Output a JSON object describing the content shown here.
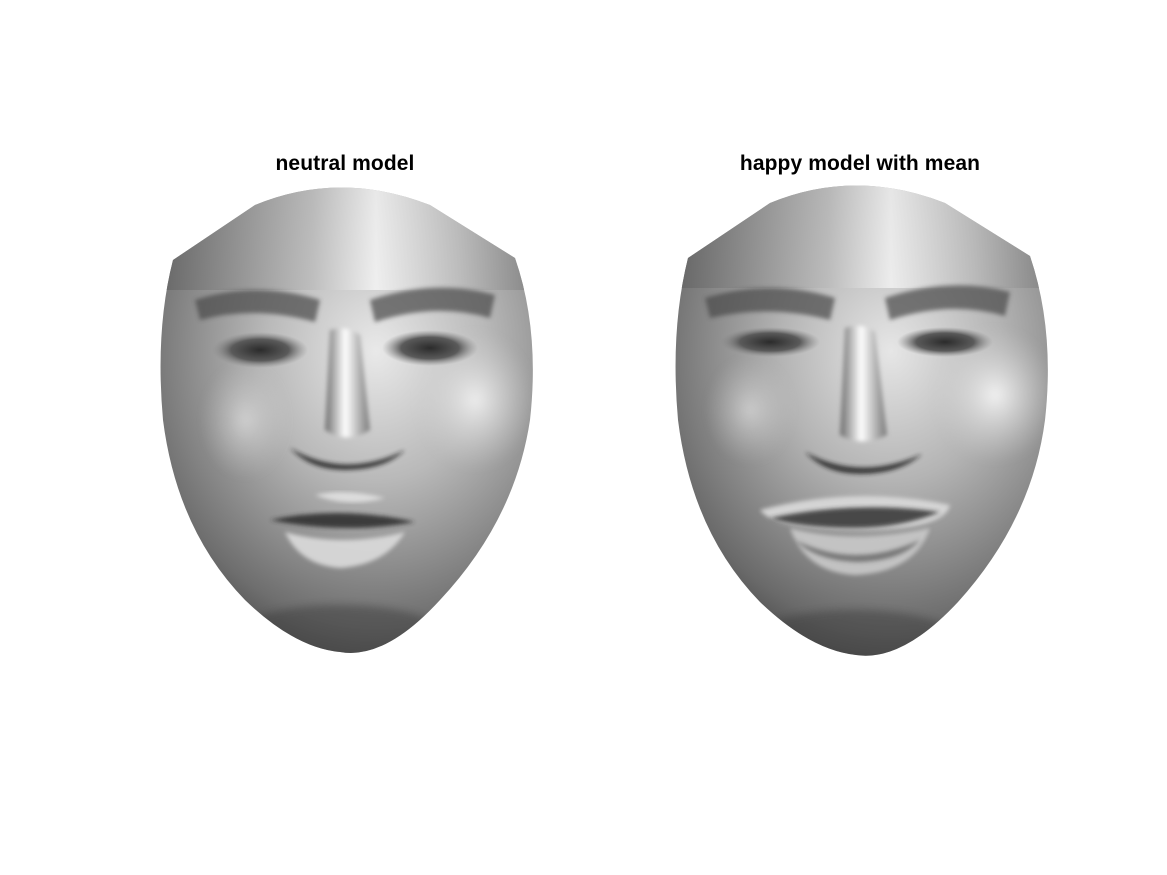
{
  "figure": {
    "background_color": "#ffffff",
    "panels": [
      {
        "title": "neutral model",
        "expression": "neutral",
        "render_style": "grayscale-shaded-3d-mesh"
      },
      {
        "title": "happy model with mean",
        "expression": "happy",
        "render_style": "grayscale-shaded-3d-mesh"
      }
    ]
  }
}
